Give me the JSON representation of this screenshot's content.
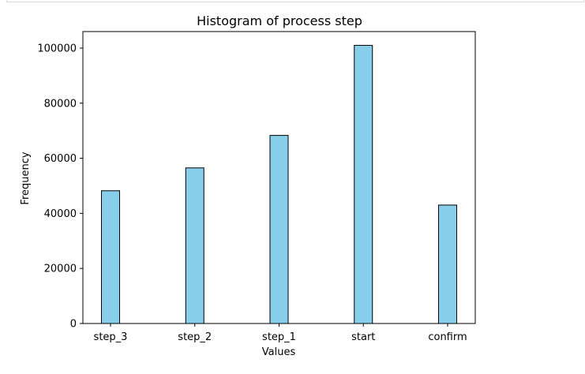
{
  "chart_data": {
    "type": "bar",
    "title": "Histogram of process step",
    "xlabel": "Values",
    "ylabel": "Frequency",
    "categories": [
      "step_3",
      "step_2",
      "step_1",
      "start",
      "confirm"
    ],
    "values": [
      48200,
      56500,
      68300,
      101000,
      43000
    ],
    "ylim": [
      0,
      106000
    ],
    "yticks": [
      0,
      20000,
      40000,
      60000,
      80000,
      100000
    ],
    "ytick_labels": [
      "0",
      "20000",
      "40000",
      "60000",
      "80000",
      "100000"
    ],
    "grid": false,
    "bar_color": "#87ceeb",
    "edge_color": "#000000"
  }
}
